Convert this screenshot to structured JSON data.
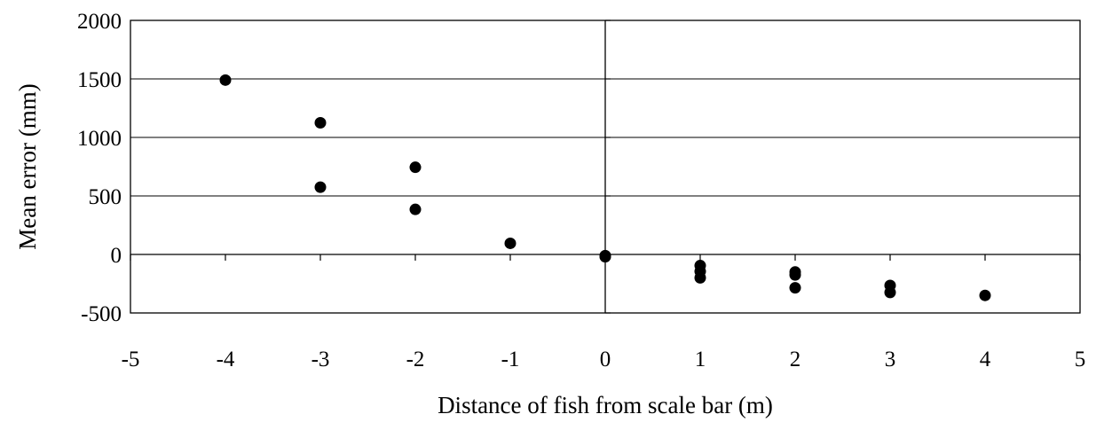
{
  "chart_data": {
    "type": "scatter",
    "title": "",
    "xlabel": "Distance of fish from scale bar (m)",
    "ylabel": "Mean error (mm)",
    "xlim": [
      -5,
      5
    ],
    "ylim": [
      -500,
      2000
    ],
    "x_ticks": [
      -5,
      -4,
      -3,
      -2,
      -1,
      0,
      1,
      2,
      3,
      4,
      5
    ],
    "y_ticks": [
      2000,
      1500,
      1000,
      500,
      0,
      -500
    ],
    "x_tick_labels": [
      "-5",
      "-4",
      "-3",
      "-2",
      "-1",
      "0",
      "1",
      "2",
      "3",
      "4",
      "5"
    ],
    "y_tick_labels": [
      "2000",
      "1500",
      "1000",
      "500",
      "0",
      "-500"
    ],
    "grid": "horizontal",
    "marker_color": "#000000",
    "points": [
      {
        "x": -4,
        "y": 1490
      },
      {
        "x": -3,
        "y": 1125
      },
      {
        "x": -3,
        "y": 575
      },
      {
        "x": -2,
        "y": 745
      },
      {
        "x": -2,
        "y": 385
      },
      {
        "x": -1,
        "y": 95
      },
      {
        "x": 0,
        "y": -10
      },
      {
        "x": 0,
        "y": -20
      },
      {
        "x": 1,
        "y": -95
      },
      {
        "x": 1,
        "y": -145
      },
      {
        "x": 1,
        "y": -200
      },
      {
        "x": 2,
        "y": -150
      },
      {
        "x": 2,
        "y": -175
      },
      {
        "x": 2,
        "y": -285
      },
      {
        "x": 3,
        "y": -265
      },
      {
        "x": 3,
        "y": -325
      },
      {
        "x": 4,
        "y": -350
      }
    ]
  }
}
